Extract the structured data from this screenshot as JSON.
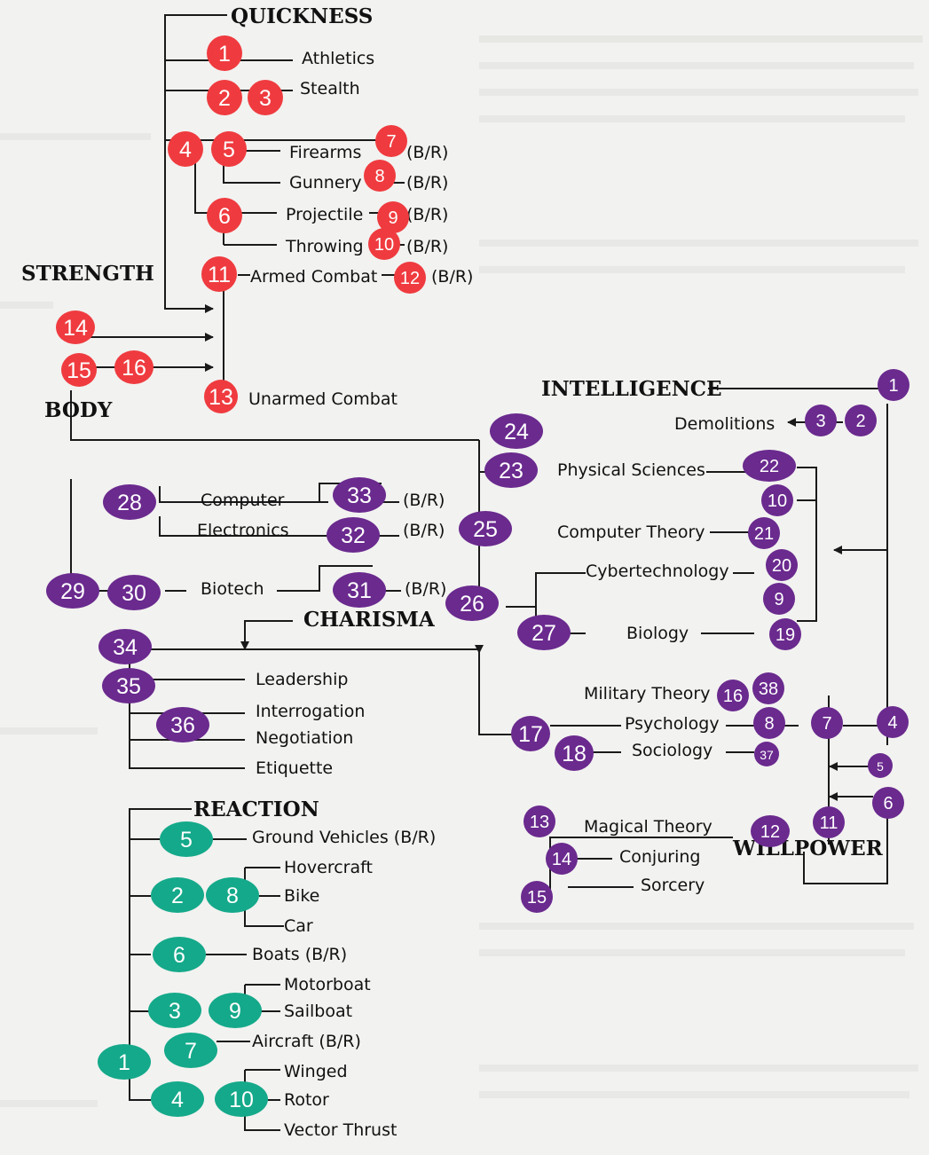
{
  "colors": {
    "red": "#ef3b3f",
    "purple": "#6a2a8e",
    "teal": "#14a98a",
    "line": "#1a1a1a"
  },
  "headers": {
    "quickness": "QUICKNESS",
    "strength": "STRENGTH",
    "body": "BODY",
    "intelligence": "INTELLIGENCE",
    "charisma": "CHARISMA",
    "reaction": "REACTION",
    "willpower": "WILLPOWER"
  },
  "skills": {
    "athletics": "Athletics",
    "stealth": "Stealth",
    "firearms": "Firearms",
    "gunnery": "Gunnery",
    "projectile": "Projectile",
    "throwing": "Throwing",
    "armed_combat": "Armed Combat",
    "unarmed_combat": "Unarmed Combat",
    "demolitions": "Demolitions",
    "physical_sciences": "Physical Sciences",
    "computer_theory": "Computer Theory",
    "cybertechnology": "Cybertechnology",
    "biology": "Biology",
    "computer": "Computer",
    "electronics": "Electronics",
    "biotech": "Biotech",
    "leadership": "Leadership",
    "interrogation": "Interrogation",
    "negotiation": "Negotiation",
    "etiquette": "Etiquette",
    "military_theory": "Military Theory",
    "psychology": "Psychology",
    "sociology": "Sociology",
    "magical_theory": "Magical Theory",
    "conjuring": "Conjuring",
    "sorcery": "Sorcery",
    "ground_vehicles": "Ground Vehicles (B/R)",
    "hovercraft": "Hovercraft",
    "bike": "Bike",
    "car": "Car",
    "boats": "Boats (B/R)",
    "motorboat": "Motorboat",
    "sailboat": "Sailboat",
    "aircraft": "Aircraft (B/R)",
    "winged": "Winged",
    "rotor": "Rotor",
    "vector_thrust": "Vector Thrust"
  },
  "br_label": "(B/R)",
  "markers": {
    "red": [
      "1",
      "2",
      "3",
      "4",
      "5",
      "6",
      "7",
      "8",
      "9",
      "10",
      "11",
      "12",
      "13",
      "14",
      "15",
      "16"
    ],
    "purple_left": [
      "24",
      "23",
      "25",
      "26",
      "27",
      "28",
      "33",
      "32",
      "29",
      "30",
      "31",
      "34",
      "35",
      "36",
      "17",
      "18"
    ],
    "purple_right": [
      "1",
      "3",
      "2",
      "22",
      "10",
      "21",
      "20",
      "9",
      "19",
      "16",
      "38",
      "8",
      "7",
      "4",
      "37",
      "5",
      "6",
      "11",
      "12",
      "13",
      "14",
      "15"
    ],
    "teal": [
      "5",
      "2",
      "8",
      "6",
      "3",
      "9",
      "7",
      "1",
      "4",
      "10"
    ]
  }
}
